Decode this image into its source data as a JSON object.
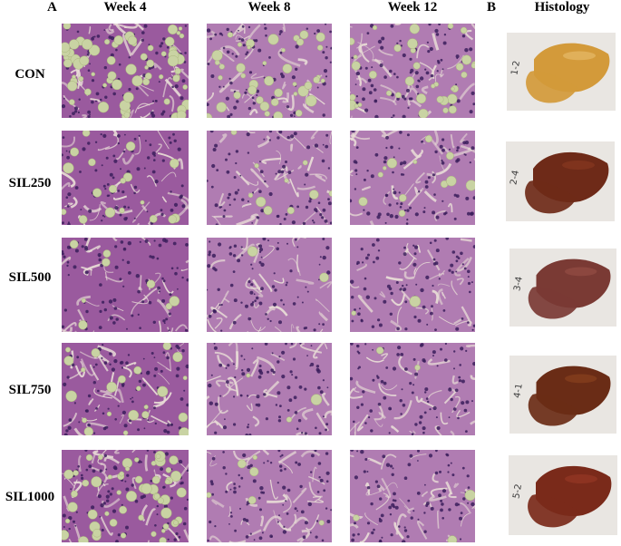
{
  "figure": {
    "panel_a": "A",
    "panel_b": "B",
    "columns": [
      "Week 4",
      "Week 8",
      "Week 12"
    ],
    "photo_column": "Histology",
    "rows": [
      {
        "label": "CON",
        "tag": "1-2"
      },
      {
        "label": "SIL250",
        "tag": "2-4"
      },
      {
        "label": "SIL500",
        "tag": "3-4"
      },
      {
        "label": "SIL750",
        "tag": "4-1"
      },
      {
        "label": "SIL1000",
        "tag": "5-2"
      }
    ]
  },
  "colors": {
    "stain_lilac": "#b48ab8",
    "stain_purple": "#7a3f86",
    "lipid_green": "#c9d3a3",
    "liver_pale": "#d39a3a",
    "liver_dark": "#6e2a18"
  }
}
